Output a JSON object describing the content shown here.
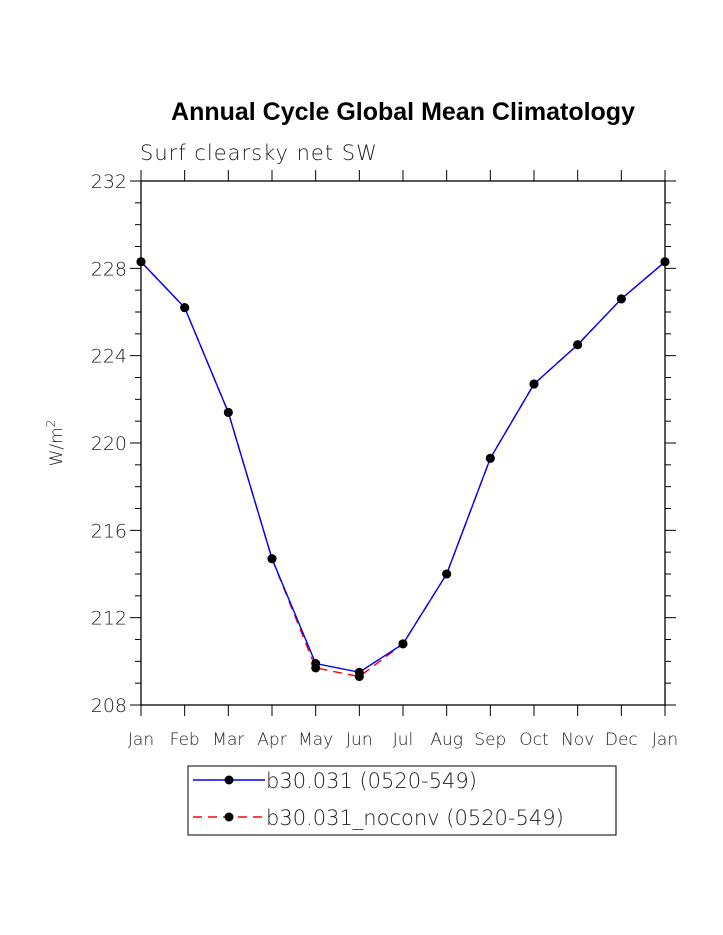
{
  "chart_data": {
    "type": "line",
    "title": "Annual Cycle Global Mean Climatology",
    "subtitle": "Surf clearsky net SW",
    "ylabel": "W/m",
    "ylabel_sup": "2",
    "xlabel": "",
    "categories": [
      "Jan",
      "Feb",
      "Mar",
      "Apr",
      "May",
      "Jun",
      "Jul",
      "Aug",
      "Sep",
      "Oct",
      "Nov",
      "Dec",
      "Jan"
    ],
    "ylim": [
      208,
      232
    ],
    "yticks": [
      208,
      212,
      216,
      220,
      224,
      228,
      232
    ],
    "grid": false,
    "legend_position": "bottom",
    "series": [
      {
        "name": "b30.031 (0520-549)",
        "color": "#0000ff",
        "dash": "solid",
        "marker": "filled-circle",
        "values": [
          228.3,
          226.2,
          221.4,
          214.7,
          209.9,
          209.5,
          210.8,
          214.0,
          219.3,
          222.7,
          224.5,
          226.6,
          228.3
        ]
      },
      {
        "name": "b30.031_noconv (0520-549)",
        "color": "#ff0000",
        "dash": "dashed",
        "marker": "filled-circle",
        "values": [
          228.3,
          226.2,
          221.4,
          214.7,
          209.7,
          209.3,
          210.8,
          214.0,
          219.3,
          222.7,
          224.5,
          226.6,
          228.3
        ]
      }
    ]
  }
}
